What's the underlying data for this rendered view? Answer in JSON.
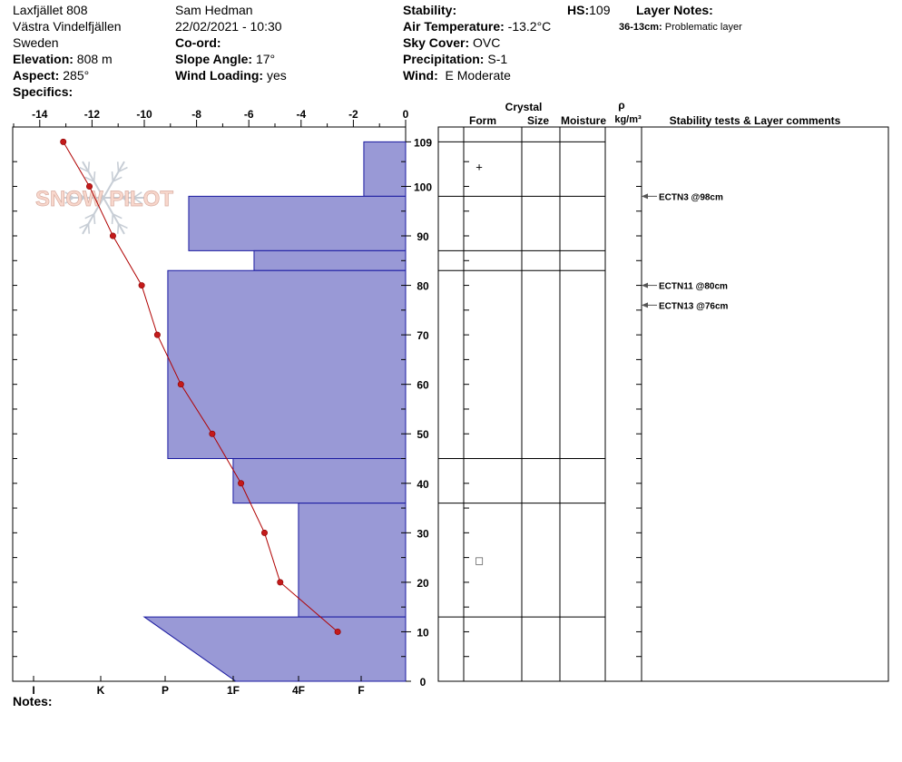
{
  "header": {
    "location": "Laxfjället 808",
    "region": "Västra Vindelfjällen",
    "country": "Sweden",
    "elevation_label": "Elevation:",
    "elevation_value": "808 m",
    "aspect_label": "Aspect:",
    "aspect_value": "285°",
    "specifics_label": "Specifics:",
    "observer": "Sam Hedman",
    "datetime": "22/02/2021 - 10:30",
    "coord_label": "Co-ord:",
    "slope_label": "Slope Angle:",
    "slope_value": "17°",
    "wind_loading_label": "Wind Loading:",
    "wind_loading_value": "yes",
    "stability_label": "Stability:",
    "air_temp_label": "Air Temperature:",
    "air_temp_value": "-13.2°C",
    "sky_label": "Sky Cover:",
    "sky_value": "OVC",
    "precip_label": "Precipitation:",
    "precip_value": "S-1",
    "wind_label": "Wind:",
    "wind_value": "E Moderate",
    "hs_label": "HS:",
    "hs_value": "109",
    "layer_notes_label": "Layer Notes:",
    "layer_note_range": "36-13cm:",
    "layer_note_text": "Problematic layer"
  },
  "notes_label": "Notes:",
  "logo_text": "SNOW PILOT",
  "columns": {
    "crystal": "Crystal",
    "form": "Form",
    "size": "Size",
    "moisture": "Moisture",
    "rho": "ρ",
    "density_unit": "kg/m³",
    "stability_comments": "Stability tests & Layer comments"
  },
  "chart_data": {
    "type": "snow-profile",
    "temperature_axis": {
      "range": [
        -15,
        0
      ],
      "ticks": [
        -14,
        -12,
        -10,
        -8,
        -6,
        -4,
        -2,
        0
      ]
    },
    "height_axis": {
      "range": [
        0,
        112
      ],
      "ticks": [
        109,
        100,
        90,
        80,
        70,
        60,
        50,
        40,
        30,
        20,
        10,
        0
      ]
    },
    "hardness_axis": {
      "labels": [
        "I",
        "K",
        "P",
        "1F",
        "4F",
        "F"
      ]
    },
    "temperature_profile": [
      {
        "height": 109,
        "temp": -13.1
      },
      {
        "height": 100,
        "temp": -12.1
      },
      {
        "height": 90,
        "temp": -11.2
      },
      {
        "height": 80,
        "temp": -10.1
      },
      {
        "height": 70,
        "temp": -9.5
      },
      {
        "height": 60,
        "temp": -8.6
      },
      {
        "height": 50,
        "temp": -7.4
      },
      {
        "height": 40,
        "temp": -6.3
      },
      {
        "height": 30,
        "temp": -5.4
      },
      {
        "height": 20,
        "temp": -4.8
      },
      {
        "height": 10,
        "temp": -2.6
      }
    ],
    "hardness_layers": [
      {
        "top": 109,
        "bottom": 98,
        "hardness_temp_equiv": -1.6
      },
      {
        "top": 98,
        "bottom": 87,
        "hardness_temp_equiv": -8.3
      },
      {
        "top": 87,
        "bottom": 83,
        "hardness_temp_equiv": -5.8
      },
      {
        "top": 83,
        "bottom": 45,
        "hardness_temp_equiv": -9.1
      },
      {
        "top": 45,
        "bottom": 36,
        "hardness_temp_equiv": -6.6
      },
      {
        "top": 36,
        "bottom": 13,
        "hardness_temp_equiv": -4.1
      },
      {
        "top": 13,
        "bottom": 0,
        "hardness_temp_equiv": -10.0,
        "bottom_hardness_temp_equiv": -6.5
      }
    ],
    "layer_boundaries": [
      109,
      98,
      87,
      83,
      45,
      36,
      13
    ],
    "grain_symbols": [
      {
        "height": 104,
        "symbol": "+"
      },
      {
        "height": 24.5,
        "symbol": "□"
      }
    ],
    "stability_tests": [
      {
        "height": 98,
        "label": "ECTN3 @98cm"
      },
      {
        "height": 80,
        "label": "ECTN11 @80cm"
      },
      {
        "height": 76,
        "label": "ECTN13 @76cm"
      }
    ]
  }
}
